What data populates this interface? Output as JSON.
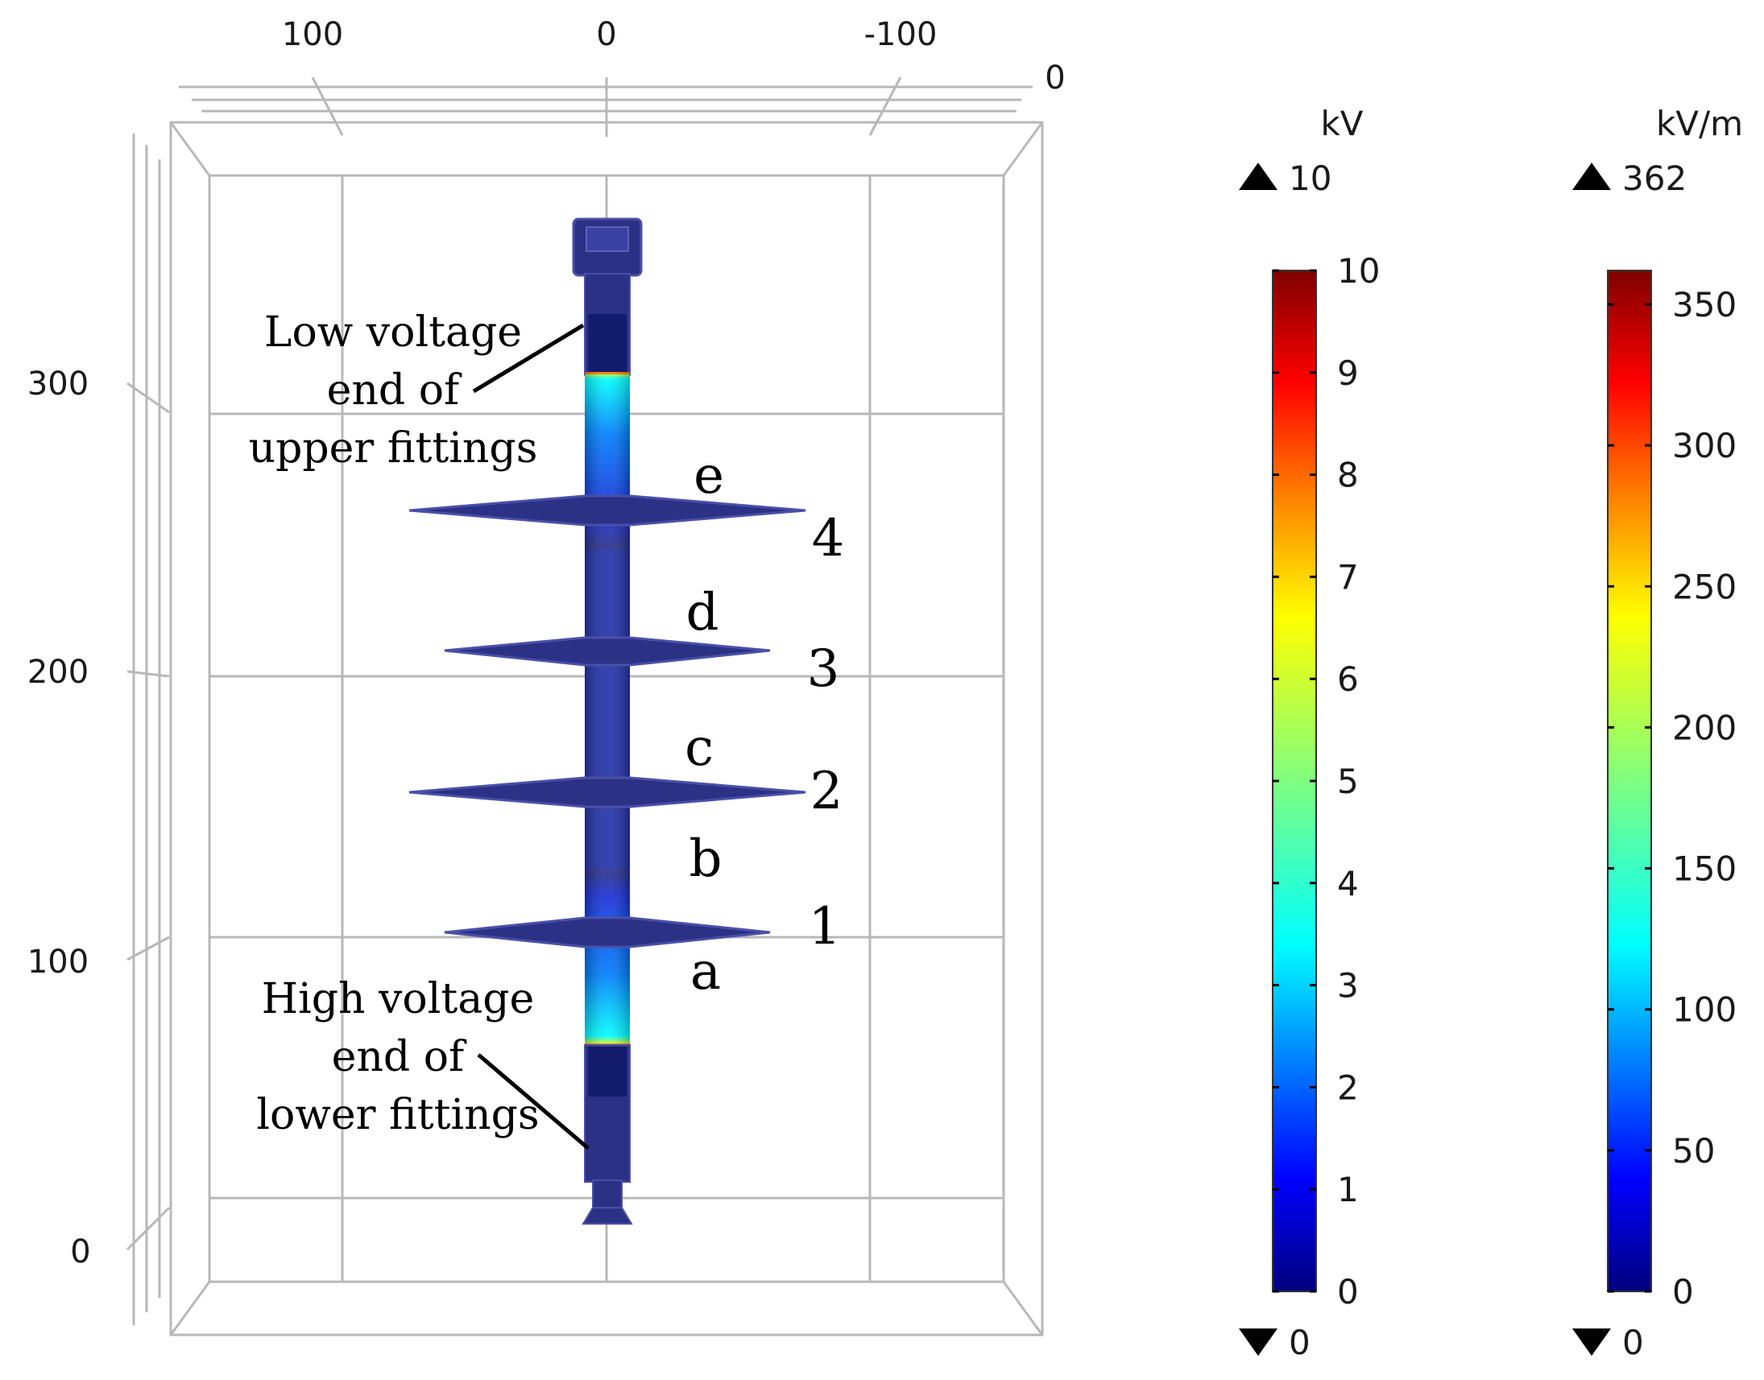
{
  "axes": {
    "top_ticks": [
      "100",
      "0",
      "-100"
    ],
    "depth_tick": "0",
    "left_ticks": [
      "300",
      "200",
      "100",
      "0"
    ]
  },
  "annotations": {
    "low_voltage": [
      "Low voltage",
      "end of",
      "upper fittings"
    ],
    "high_voltage": [
      "High voltage",
      "end of",
      "lower fittings"
    ]
  },
  "shed_numbers": [
    "4",
    "3",
    "2",
    "1"
  ],
  "section_letters": [
    "e",
    "d",
    "c",
    "b",
    "a"
  ],
  "colorbars": [
    {
      "unit": "kV",
      "max_label": "10",
      "min_label": "0",
      "ticks": [
        "10",
        "9",
        "8",
        "7",
        "6",
        "5",
        "4",
        "3",
        "2",
        "1",
        "0"
      ]
    },
    {
      "unit": "kV/m",
      "max_label": "362",
      "min_label": "0",
      "ticks": [
        "350",
        "300",
        "250",
        "200",
        "150",
        "100",
        "50",
        "0"
      ]
    }
  ],
  "colors": {
    "insulator": "#2b3185",
    "insulator_light": "#4a50a8",
    "grid": "#b8b8b8",
    "jet": [
      "#00007f",
      "#0000ff",
      "#007fff",
      "#00ffff",
      "#7fff7f",
      "#ffff00",
      "#ff7f00",
      "#ff0000",
      "#7f0000"
    ]
  }
}
